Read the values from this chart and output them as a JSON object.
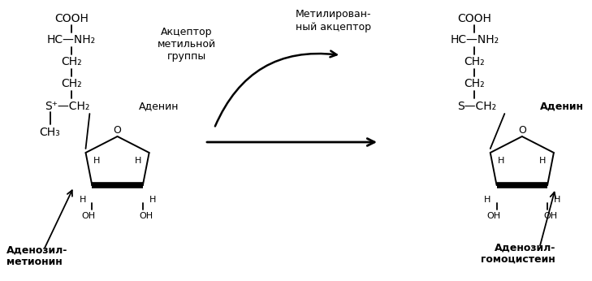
{
  "bg_color": "#ffffff",
  "text_color": "#000000",
  "left_label_line1": "Аденозил-",
  "left_label_line2": "метионин",
  "right_label_line1": "Аденозил-",
  "right_label_line2": "гомоцистеин",
  "acceptor_line1": "Акцептор",
  "acceptor_line2": "метильной",
  "acceptor_line3": "группы",
  "methylated_line1": "Метилирован-",
  "methylated_line2": "ный акцептор",
  "cooh": "COOH",
  "hcnh2": "HC—NH₂",
  "ch2": "CH₂",
  "s_plus_ch2": "S⁺—CH₂",
  "s_ch2": "S—CH₂",
  "ch3": "CH₃",
  "adenin": "Аденин",
  "oh": "OH",
  "h": "H",
  "o": "O"
}
